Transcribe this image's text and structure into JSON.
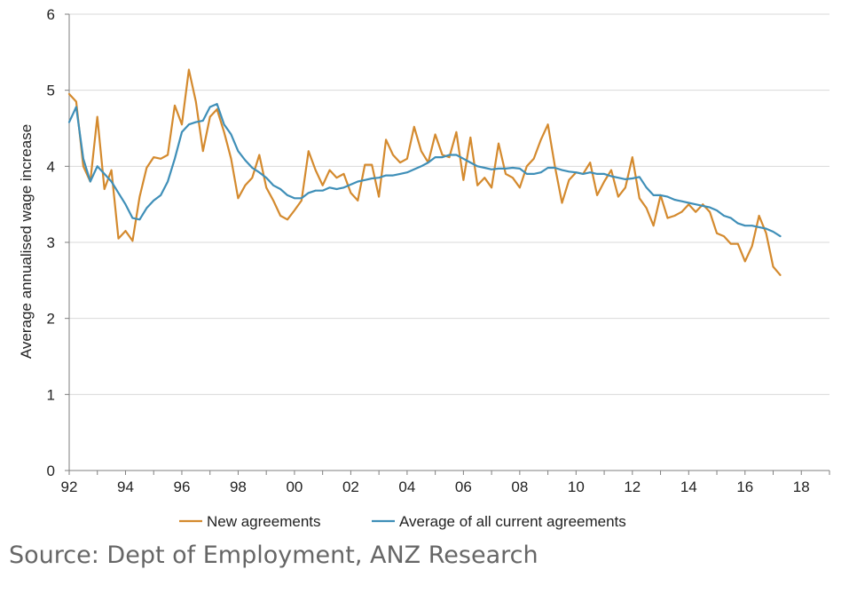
{
  "source_note": "Source: Dept of Employment, ANZ Research",
  "colors": {
    "new": "#d48a2e",
    "avg": "#3f8fb8",
    "grid": "#d9d9d9",
    "axis": "#7f7f7f"
  },
  "chart_data": {
    "type": "line",
    "title": "",
    "xlabel": "",
    "ylabel": "Average annualised wage increase",
    "xlim": [
      1992,
      2019
    ],
    "ylim": [
      0,
      6
    ],
    "xticks": [
      1992,
      1994,
      1996,
      1998,
      2000,
      2002,
      2004,
      2006,
      2008,
      2010,
      2012,
      2014,
      2016,
      2018
    ],
    "xtick_labels": [
      "92",
      "94",
      "96",
      "98",
      "00",
      "02",
      "04",
      "06",
      "08",
      "10",
      "12",
      "14",
      "16",
      "18"
    ],
    "yticks": [
      0,
      1,
      2,
      3,
      4,
      5,
      6
    ],
    "ytick_labels": [
      "0",
      "1",
      "2",
      "3",
      "4",
      "5",
      "6"
    ],
    "grid": "horizontal",
    "legend": "bottom",
    "series": [
      {
        "name": "New agreements",
        "color": "#d48a2e",
        "x": [
          1992.0,
          1992.25,
          1992.5,
          1992.75,
          1993.0,
          1993.25,
          1993.5,
          1993.75,
          1994.0,
          1994.25,
          1994.5,
          1994.75,
          1995.0,
          1995.25,
          1995.5,
          1995.75,
          1996.0,
          1996.25,
          1996.5,
          1996.75,
          1997.0,
          1997.25,
          1997.5,
          1997.75,
          1998.0,
          1998.25,
          1998.5,
          1998.75,
          1999.0,
          1999.25,
          1999.5,
          1999.75,
          2000.0,
          2000.25,
          2000.5,
          2000.75,
          2001.0,
          2001.25,
          2001.5,
          2001.75,
          2002.0,
          2002.25,
          2002.5,
          2002.75,
          2003.0,
          2003.25,
          2003.5,
          2003.75,
          2004.0,
          2004.25,
          2004.5,
          2004.75,
          2005.0,
          2005.25,
          2005.5,
          2005.75,
          2006.0,
          2006.25,
          2006.5,
          2006.75,
          2007.0,
          2007.25,
          2007.5,
          2007.75,
          2008.0,
          2008.25,
          2008.5,
          2008.75,
          2009.0,
          2009.25,
          2009.5,
          2009.75,
          2010.0,
          2010.25,
          2010.5,
          2010.75,
          2011.0,
          2011.25,
          2011.5,
          2011.75,
          2012.0,
          2012.25,
          2012.5,
          2012.75,
          2013.0,
          2013.25,
          2013.5,
          2013.75,
          2014.0,
          2014.25,
          2014.5,
          2014.75,
          2015.0,
          2015.25,
          2015.5,
          2015.75,
          2016.0,
          2016.25,
          2016.5,
          2016.75,
          2017.0,
          2017.25
        ],
        "y": [
          4.95,
          4.85,
          4.0,
          3.8,
          4.65,
          3.7,
          3.95,
          3.05,
          3.15,
          3.02,
          3.6,
          3.98,
          4.12,
          4.1,
          4.15,
          4.8,
          4.55,
          5.27,
          4.85,
          4.2,
          4.65,
          4.75,
          4.45,
          4.1,
          3.58,
          3.75,
          3.85,
          4.15,
          3.72,
          3.55,
          3.35,
          3.3,
          3.42,
          3.55,
          4.2,
          3.95,
          3.75,
          3.95,
          3.85,
          3.9,
          3.65,
          3.55,
          4.02,
          4.02,
          3.6,
          4.35,
          4.15,
          4.05,
          4.1,
          4.52,
          4.2,
          4.05,
          4.42,
          4.15,
          4.12,
          4.45,
          3.82,
          4.38,
          3.75,
          3.85,
          3.72,
          4.3,
          3.9,
          3.85,
          3.72,
          4.0,
          4.1,
          4.35,
          4.55,
          4.0,
          3.52,
          3.82,
          3.92,
          3.9,
          4.05,
          3.62,
          3.8,
          3.95,
          3.6,
          3.72,
          4.12,
          3.58,
          3.45,
          3.22,
          3.62,
          3.32,
          3.35,
          3.4,
          3.5,
          3.4,
          3.5,
          3.4,
          3.12,
          3.08,
          2.98,
          2.98,
          2.75,
          2.95,
          3.35,
          3.12,
          2.68,
          2.57
        ]
      },
      {
        "name": "Average of all current agreements",
        "color": "#3f8fb8",
        "x": [
          1992.0,
          1992.25,
          1992.5,
          1992.75,
          1993.0,
          1993.25,
          1993.5,
          1993.75,
          1994.0,
          1994.25,
          1994.5,
          1994.75,
          1995.0,
          1995.25,
          1995.5,
          1995.75,
          1996.0,
          1996.25,
          1996.5,
          1996.75,
          1997.0,
          1997.25,
          1997.5,
          1997.75,
          1998.0,
          1998.25,
          1998.5,
          1998.75,
          1999.0,
          1999.25,
          1999.5,
          1999.75,
          2000.0,
          2000.25,
          2000.5,
          2000.75,
          2001.0,
          2001.25,
          2001.5,
          2001.75,
          2002.0,
          2002.25,
          2002.5,
          2002.75,
          2003.0,
          2003.25,
          2003.5,
          2003.75,
          2004.0,
          2004.25,
          2004.5,
          2004.75,
          2005.0,
          2005.25,
          2005.5,
          2005.75,
          2006.0,
          2006.25,
          2006.5,
          2006.75,
          2007.0,
          2007.25,
          2007.5,
          2007.75,
          2008.0,
          2008.25,
          2008.5,
          2008.75,
          2009.0,
          2009.25,
          2009.5,
          2009.75,
          2010.0,
          2010.25,
          2010.5,
          2010.75,
          2011.0,
          2011.25,
          2011.5,
          2011.75,
          2012.0,
          2012.25,
          2012.5,
          2012.75,
          2013.0,
          2013.25,
          2013.5,
          2013.75,
          2014.0,
          2014.25,
          2014.5,
          2014.75,
          2015.0,
          2015.25,
          2015.5,
          2015.75,
          2016.0,
          2016.25,
          2016.5,
          2016.75,
          2017.0,
          2017.25
        ],
        "y": [
          4.58,
          4.78,
          4.1,
          3.8,
          4.0,
          3.9,
          3.8,
          3.65,
          3.5,
          3.32,
          3.3,
          3.45,
          3.55,
          3.62,
          3.8,
          4.1,
          4.45,
          4.55,
          4.58,
          4.6,
          4.78,
          4.82,
          4.55,
          4.42,
          4.2,
          4.08,
          3.98,
          3.92,
          3.85,
          3.75,
          3.7,
          3.62,
          3.58,
          3.58,
          3.65,
          3.68,
          3.68,
          3.72,
          3.7,
          3.72,
          3.76,
          3.8,
          3.82,
          3.84,
          3.85,
          3.88,
          3.88,
          3.9,
          3.92,
          3.96,
          4.0,
          4.05,
          4.12,
          4.12,
          4.15,
          4.15,
          4.1,
          4.05,
          4.0,
          3.98,
          3.96,
          3.97,
          3.97,
          3.98,
          3.97,
          3.9,
          3.9,
          3.92,
          3.98,
          3.98,
          3.95,
          3.93,
          3.92,
          3.9,
          3.92,
          3.9,
          3.9,
          3.87,
          3.85,
          3.83,
          3.84,
          3.86,
          3.72,
          3.62,
          3.62,
          3.6,
          3.56,
          3.54,
          3.52,
          3.5,
          3.48,
          3.46,
          3.42,
          3.35,
          3.32,
          3.25,
          3.22,
          3.22,
          3.2,
          3.18,
          3.14,
          3.08
        ]
      }
    ]
  }
}
